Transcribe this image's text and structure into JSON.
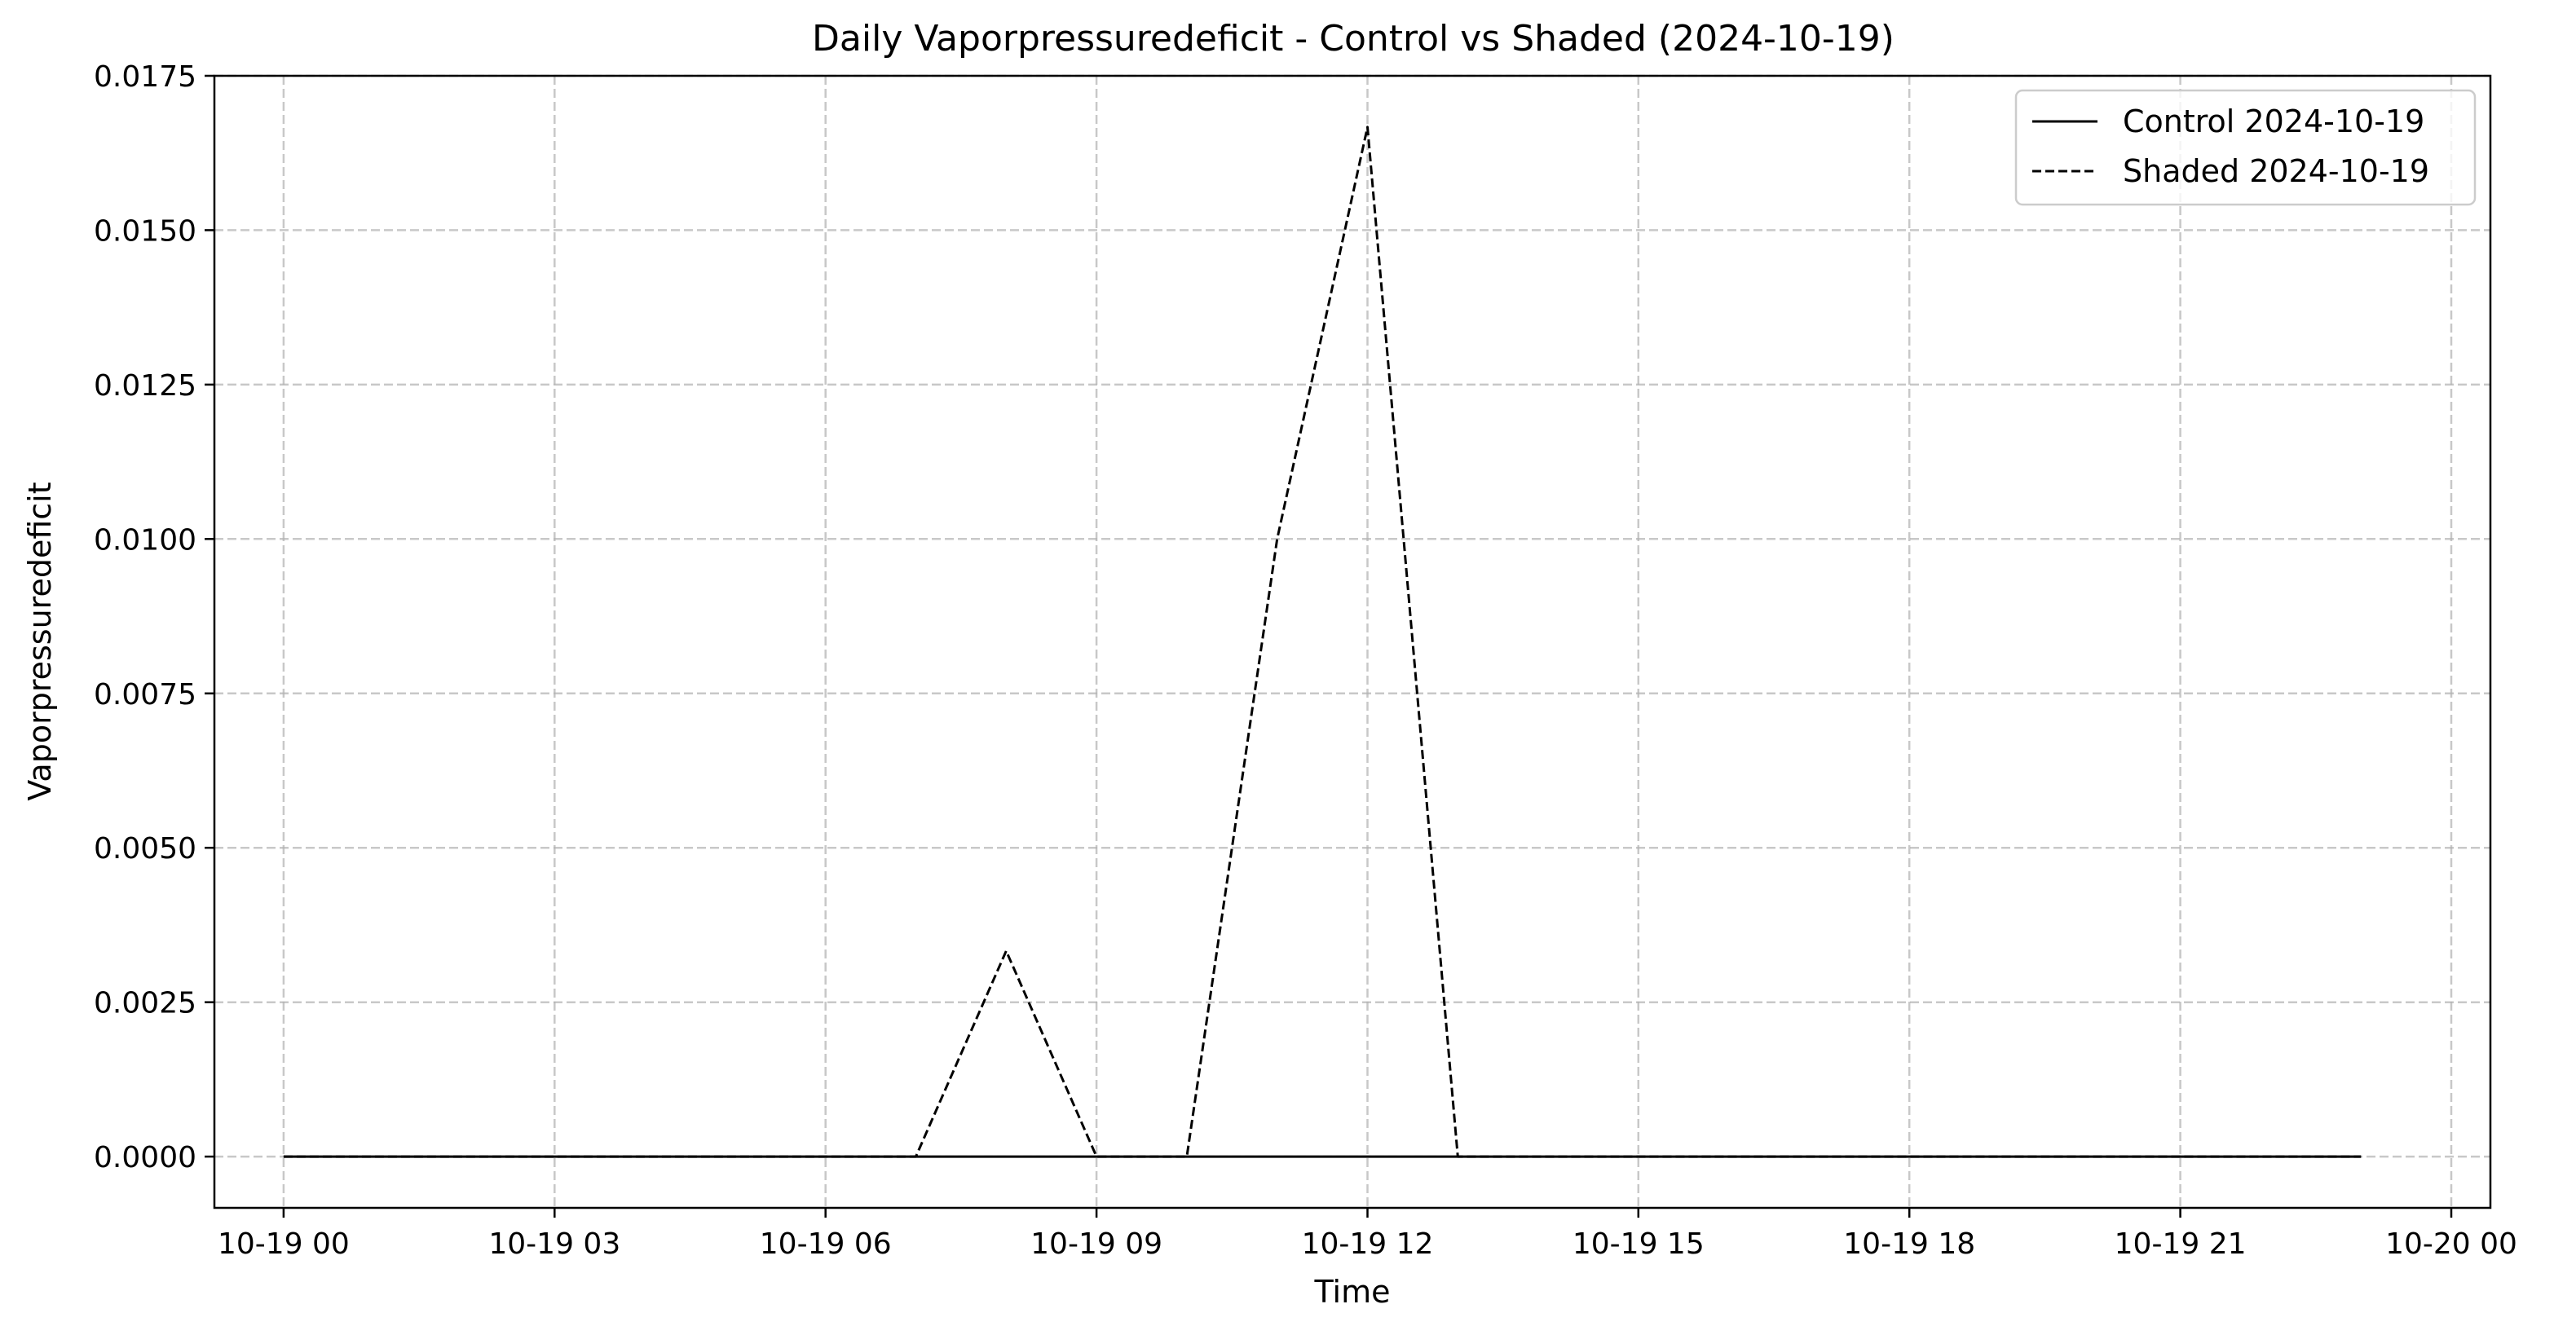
{
  "chart_data": {
    "type": "line",
    "title": "Daily Vaporpressuredeficit - Control vs Shaded (2024-10-19)",
    "xlabel": "Time",
    "ylabel": "Vaporpressuredeficit",
    "x_axis": {
      "min": "2024-10-18 23:14",
      "max": "2024-10-20 00:26",
      "ticks": [
        {
          "value": "2024-10-19 00:00",
          "label": "10-19 00"
        },
        {
          "value": "2024-10-19 03:00",
          "label": "10-19 03"
        },
        {
          "value": "2024-10-19 06:00",
          "label": "10-19 06"
        },
        {
          "value": "2024-10-19 09:00",
          "label": "10-19 09"
        },
        {
          "value": "2024-10-19 12:00",
          "label": "10-19 12"
        },
        {
          "value": "2024-10-19 15:00",
          "label": "10-19 15"
        },
        {
          "value": "2024-10-19 18:00",
          "label": "10-19 18"
        },
        {
          "value": "2024-10-19 21:00",
          "label": "10-19 21"
        },
        {
          "value": "2024-10-20 00:00",
          "label": "10-20 00"
        }
      ]
    },
    "y_axis": {
      "min": -0.00083,
      "max": 0.0175,
      "ticks": [
        {
          "value": 0.0,
          "label": "0.0000"
        },
        {
          "value": 0.0025,
          "label": "0.0025"
        },
        {
          "value": 0.005,
          "label": "0.0050"
        },
        {
          "value": 0.0075,
          "label": "0.0075"
        },
        {
          "value": 0.01,
          "label": "0.0100"
        },
        {
          "value": 0.0125,
          "label": "0.0125"
        },
        {
          "value": 0.015,
          "label": "0.0150"
        },
        {
          "value": 0.0175,
          "label": "0.0175"
        }
      ]
    },
    "grid": true,
    "legend_position": "top-right",
    "series": [
      {
        "name": "Control 2024-10-19",
        "style": "solid",
        "color": "#000000",
        "points": [
          {
            "x": "2024-10-19 00:00",
            "y": 0.0
          },
          {
            "x": "2024-10-19 01:00",
            "y": 0.0
          },
          {
            "x": "2024-10-19 02:00",
            "y": 0.0
          },
          {
            "x": "2024-10-19 03:00",
            "y": 0.0
          },
          {
            "x": "2024-10-19 04:00",
            "y": 0.0
          },
          {
            "x": "2024-10-19 05:00",
            "y": 0.0
          },
          {
            "x": "2024-10-19 06:00",
            "y": 0.0
          },
          {
            "x": "2024-10-19 07:00",
            "y": 0.0
          },
          {
            "x": "2024-10-19 08:00",
            "y": 0.0
          },
          {
            "x": "2024-10-19 09:00",
            "y": 0.0
          },
          {
            "x": "2024-10-19 10:00",
            "y": 0.0
          },
          {
            "x": "2024-10-19 11:00",
            "y": 0.0
          },
          {
            "x": "2024-10-19 12:00",
            "y": 0.0
          },
          {
            "x": "2024-10-19 13:00",
            "y": 0.0
          },
          {
            "x": "2024-10-19 14:00",
            "y": 0.0
          },
          {
            "x": "2024-10-19 15:00",
            "y": 0.0
          },
          {
            "x": "2024-10-19 16:00",
            "y": 0.0
          },
          {
            "x": "2024-10-19 17:00",
            "y": 0.0
          },
          {
            "x": "2024-10-19 18:00",
            "y": 0.0
          },
          {
            "x": "2024-10-19 19:00",
            "y": 0.0
          },
          {
            "x": "2024-10-19 20:00",
            "y": 0.0
          },
          {
            "x": "2024-10-19 21:00",
            "y": 0.0
          },
          {
            "x": "2024-10-19 22:00",
            "y": 0.0
          },
          {
            "x": "2024-10-19 23:00",
            "y": 0.0
          }
        ]
      },
      {
        "name": "Shaded 2024-10-19",
        "style": "dashed",
        "color": "#000000",
        "points": [
          {
            "x": "2024-10-19 00:00",
            "y": 0.0
          },
          {
            "x": "2024-10-19 01:00",
            "y": 0.0
          },
          {
            "x": "2024-10-19 02:00",
            "y": 0.0
          },
          {
            "x": "2024-10-19 03:00",
            "y": 0.0
          },
          {
            "x": "2024-10-19 04:00",
            "y": 0.0
          },
          {
            "x": "2024-10-19 05:00",
            "y": 0.0
          },
          {
            "x": "2024-10-19 06:00",
            "y": 0.0
          },
          {
            "x": "2024-10-19 07:00",
            "y": 0.0
          },
          {
            "x": "2024-10-19 08:00",
            "y": 0.00333
          },
          {
            "x": "2024-10-19 09:00",
            "y": 0.0
          },
          {
            "x": "2024-10-19 10:00",
            "y": 0.0
          },
          {
            "x": "2024-10-19 11:00",
            "y": 0.01
          },
          {
            "x": "2024-10-19 12:00",
            "y": 0.01667
          },
          {
            "x": "2024-10-19 13:00",
            "y": 0.0
          },
          {
            "x": "2024-10-19 14:00",
            "y": 0.0
          },
          {
            "x": "2024-10-19 15:00",
            "y": 0.0
          },
          {
            "x": "2024-10-19 16:00",
            "y": 0.0
          },
          {
            "x": "2024-10-19 17:00",
            "y": 0.0
          },
          {
            "x": "2024-10-19 18:00",
            "y": 0.0
          },
          {
            "x": "2024-10-19 19:00",
            "y": 0.0
          },
          {
            "x": "2024-10-19 20:00",
            "y": 0.0
          },
          {
            "x": "2024-10-19 21:00",
            "y": 0.0
          },
          {
            "x": "2024-10-19 22:00",
            "y": 0.0
          },
          {
            "x": "2024-10-19 23:00",
            "y": 0.0
          }
        ]
      }
    ]
  }
}
